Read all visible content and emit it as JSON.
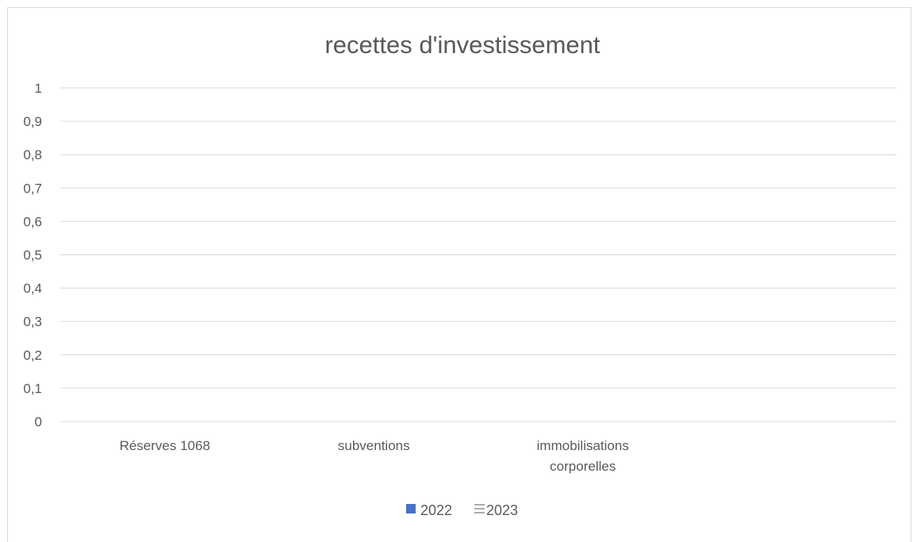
{
  "chart_data": {
    "type": "bar",
    "title": "recettes d'investissement",
    "xlabel": "",
    "ylabel": "",
    "categories": [
      "Réserves 1068",
      "subventions",
      "immobilisations corporelles"
    ],
    "category_lines": [
      [
        "Réserves 1068"
      ],
      [
        "subventions"
      ],
      [
        "immobilisations",
        "corporelles"
      ]
    ],
    "series": [
      {
        "name": "2022",
        "values": [
          0,
          0,
          0
        ],
        "color": "#4472c4"
      },
      {
        "name": "2023",
        "values": [
          0,
          0,
          0
        ],
        "color": "#a5a5a5"
      }
    ],
    "ylim": [
      0,
      1
    ],
    "yticks": [
      "0",
      "0,1",
      "0,2",
      "0,3",
      "0,4",
      "0,5",
      "0,6",
      "0,7",
      "0,8",
      "0,9",
      "1"
    ],
    "grid": true,
    "legend_position": "bottom",
    "category_slots": 4
  }
}
